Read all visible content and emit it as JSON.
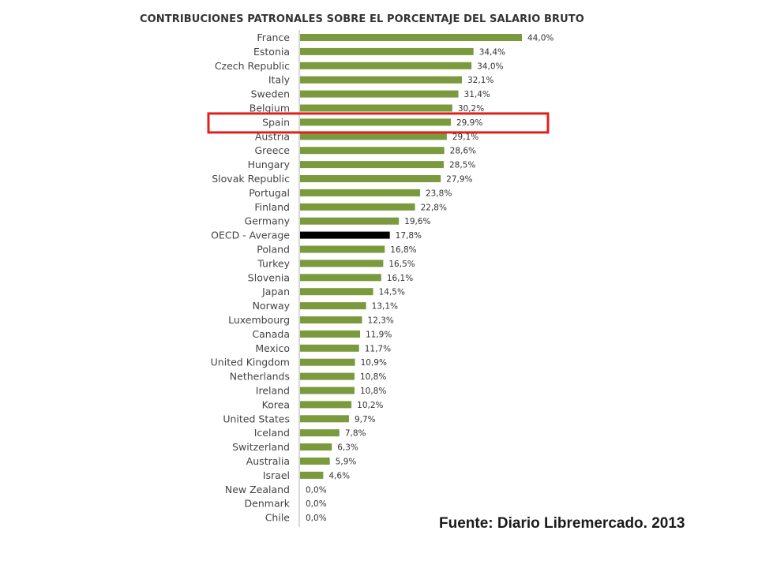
{
  "chart_data": {
    "type": "bar",
    "orientation": "horizontal",
    "title": "CONTRIBUCIONES PATRONALES SOBRE EL PORCENTAJE DEL SALARIO BRUTO",
    "xlim": [
      0,
      44
    ],
    "grid": false,
    "legend": "none",
    "categories": [
      "France",
      "Estonia",
      "Czech Republic",
      "Italy",
      "Sweden",
      "Belgium",
      "Spain",
      "Austria",
      "Greece",
      "Hungary",
      "Slovak Republic",
      "Portugal",
      "Finland",
      "Germany",
      "OECD - Average",
      "Poland",
      "Turkey",
      "Slovenia",
      "Japan",
      "Norway",
      "Luxembourg",
      "Canada",
      "Mexico",
      "United Kingdom",
      "Netherlands",
      "Ireland",
      "Korea",
      "United States",
      "Iceland",
      "Switzerland",
      "Australia",
      "Israel",
      "New Zealand",
      "Denmark",
      "Chile"
    ],
    "values": [
      44.0,
      34.4,
      34.0,
      32.1,
      31.4,
      30.2,
      29.9,
      29.1,
      28.6,
      28.5,
      27.9,
      23.8,
      22.8,
      19.6,
      17.8,
      16.8,
      16.5,
      16.1,
      14.5,
      13.1,
      12.3,
      11.9,
      11.7,
      10.9,
      10.8,
      10.8,
      10.2,
      9.7,
      7.8,
      6.3,
      5.9,
      4.6,
      0.0,
      0.0,
      0.0
    ],
    "value_labels": [
      "44,0%",
      "34,4%",
      "34,0%",
      "32,1%",
      "31,4%",
      "30,2%",
      "29,9%",
      "29,1%",
      "28,6%",
      "28,5%",
      "27,9%",
      "23,8%",
      "22,8%",
      "19,6%",
      "17,8%",
      "16,8%",
      "16,5%",
      "16,1%",
      "14,5%",
      "13,1%",
      "12,3%",
      "11,9%",
      "11,7%",
      "10,9%",
      "10,8%",
      "10,8%",
      "10,2%",
      "9,7%",
      "7,8%",
      "6,3%",
      "5,9%",
      "4,6%",
      "0,0%",
      "0,0%",
      "0,0%"
    ],
    "bar_color": "#7a9a3d",
    "highlight_bar": "OECD - Average",
    "highlight_bar_color": "#000000",
    "boxed_category": "Spain",
    "box_color": "#e0201b"
  },
  "source": "Fuente: Diario Libremercado. 2013",
  "colors": {
    "axis": "#b0b0b0",
    "text": "#444444"
  }
}
